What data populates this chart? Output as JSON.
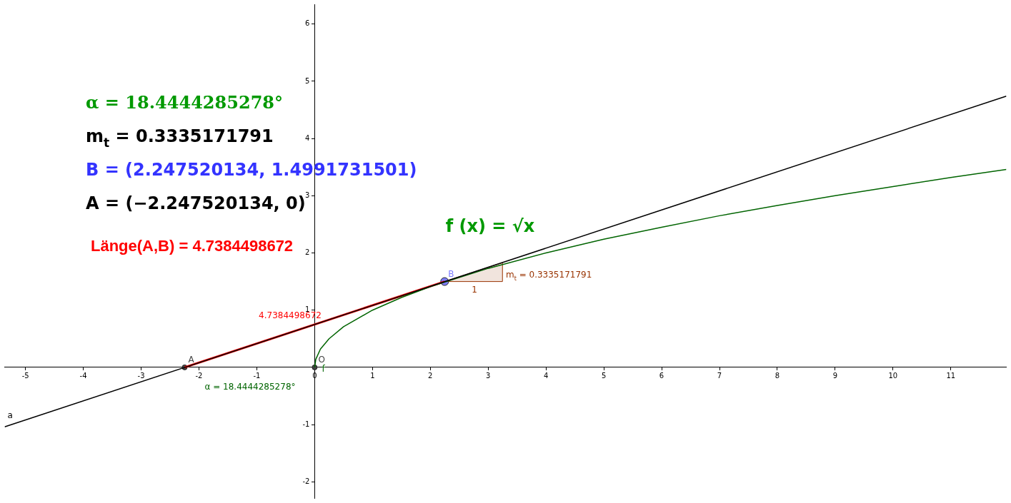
{
  "chart_data": {
    "type": "line",
    "xlim": [
      -5.36,
      11.96
    ],
    "ylim": [
      -2.29,
      6.34
    ],
    "xticks": [
      -5,
      -4,
      -3,
      -2,
      -1,
      0,
      1,
      2,
      3,
      4,
      5,
      6,
      7,
      8,
      9,
      10,
      11
    ],
    "yticks": [
      -2,
      -1,
      1,
      2,
      3,
      4,
      5,
      6
    ],
    "grid": false,
    "legend": false,
    "line_style": "solid",
    "series": [
      {
        "name": "a",
        "type": "line",
        "marker": "none",
        "color": "#000000",
        "x": [
          -5.36,
          11.96
        ],
        "values": [
          -1.04,
          4.74
        ]
      },
      {
        "name": "f",
        "type": "line",
        "marker": "none",
        "color": "#006400",
        "x": [
          0,
          0.02,
          0.1,
          0.25,
          0.5,
          1,
          1.5,
          2,
          3,
          4,
          5,
          6,
          7,
          8,
          9,
          10,
          11,
          11.96
        ],
        "values": [
          0,
          0.14,
          0.32,
          0.5,
          0.71,
          1,
          1.22,
          1.41,
          1.73,
          2,
          2.24,
          2.45,
          2.65,
          2.83,
          3,
          3.16,
          3.32,
          3.46
        ]
      },
      {
        "type": "line",
        "marker": "none",
        "color": "#ff0000",
        "x": [
          -2.2475,
          2.2475
        ],
        "values": [
          0,
          1.5
        ]
      },
      {
        "type": "area",
        "marker": "none",
        "color": "#993300",
        "x": [
          2.2475,
          3.2475,
          3.2475,
          2.2475
        ],
        "values": [
          1.5,
          1.5,
          1.83,
          1.5
        ]
      },
      {
        "name": "A",
        "type": "scatter",
        "marker": "circle",
        "color": "#444444",
        "x": [
          -2.2475
        ],
        "values": [
          0
        ]
      },
      {
        "name": "O",
        "type": "scatter",
        "marker": "circle",
        "color": "#444444",
        "x": [
          0
        ],
        "values": [
          0
        ]
      },
      {
        "name": "B",
        "type": "scatter",
        "marker": "circle",
        "color": "#7d7dff",
        "x": [
          2.2475
        ],
        "values": [
          1.5
        ]
      }
    ],
    "annotations": [
      "α = 18.4444285278°",
      "m$_{t}$ = 0.3335171791",
      "B = (2.247520134, 1.4991731501)",
      "A = (−2.247520134, 0)",
      "Länge(A,B) = 4.7384498672",
      "f (x) = √x",
      "4.7384498672",
      "α = 18.4444285278°",
      "m$_{t}$ = 0.3335171791",
      "1"
    ]
  }
}
